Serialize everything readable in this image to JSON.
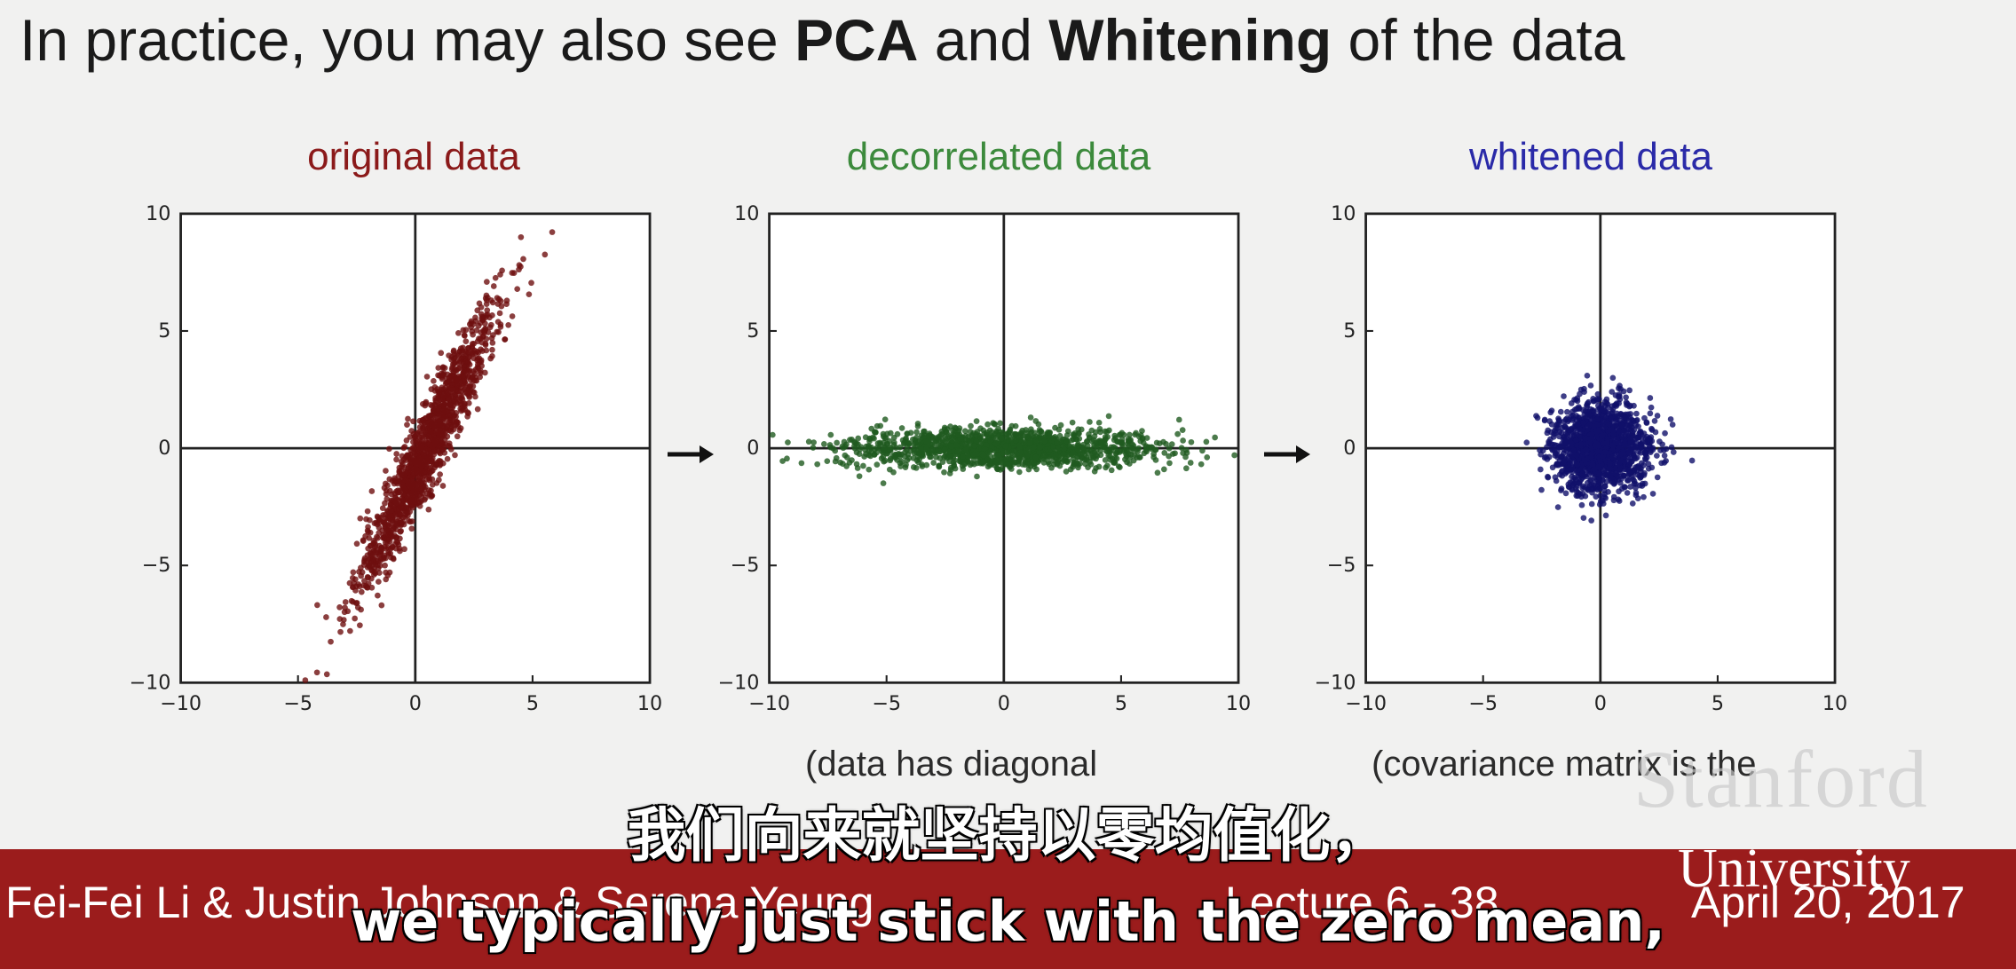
{
  "slide": {
    "title_parts": [
      {
        "text": "In practice, you may also see ",
        "bold": false
      },
      {
        "text": "PCA",
        "bold": true
      },
      {
        "text": " and ",
        "bold": false
      },
      {
        "text": "Whitening",
        "bold": true
      },
      {
        "text": " of the data",
        "bold": false
      }
    ]
  },
  "chart_data": [
    {
      "type": "scatter",
      "title": "original data",
      "title_color": "#8b1a1a",
      "point_color": "#6e0f0f",
      "xlim": [
        -10,
        10
      ],
      "ylim": [
        -10,
        10
      ],
      "xticks": [
        "−10",
        "−5",
        "0",
        "5",
        "10"
      ],
      "yticks": [
        "10",
        "5",
        "0",
        "−5",
        "−10"
      ],
      "distribution": {
        "mean": [
          0.5,
          0
        ],
        "var": [
          2.2,
          9.5
        ],
        "corr": 0.95,
        "n": 1400
      },
      "caption": ""
    },
    {
      "type": "scatter",
      "title": "decorrelated data",
      "title_color": "#3c8a3c",
      "point_color": "#1f5a1f",
      "xlim": [
        -10,
        10
      ],
      "ylim": [
        -10,
        10
      ],
      "xticks": [
        "−10",
        "−5",
        "0",
        "5",
        "10"
      ],
      "yticks": [
        "10",
        "5",
        "0",
        "−5",
        "−10"
      ],
      "distribution": {
        "mean": [
          0,
          0
        ],
        "var": [
          10.5,
          0.18
        ],
        "corr": 0,
        "n": 1400
      },
      "caption": "(data has diagonal"
    },
    {
      "type": "scatter",
      "title": "whitened data",
      "title_color": "#2a2aa8",
      "point_color": "#10106a",
      "xlim": [
        -10,
        10
      ],
      "ylim": [
        -10,
        10
      ],
      "xticks": [
        "−10",
        "−5",
        "0",
        "5",
        "10"
      ],
      "yticks": [
        "10",
        "5",
        "0",
        "−5",
        "−10"
      ],
      "distribution": {
        "mean": [
          0,
          0
        ],
        "var": [
          1,
          1
        ],
        "corr": 0,
        "n": 1400
      },
      "caption": "(covariance matrix is the"
    }
  ],
  "footer": {
    "authors": "Fei-Fei Li & Justin Johnson & Serena Yeung",
    "lecture": "Lecture 6 - 38",
    "date": "April 20, 2017",
    "university": "University",
    "watermark": "Stanford"
  },
  "subtitles": {
    "zh": "我们向来就坚持以零均值化，",
    "en": "we typically just stick with the zero mean,"
  }
}
